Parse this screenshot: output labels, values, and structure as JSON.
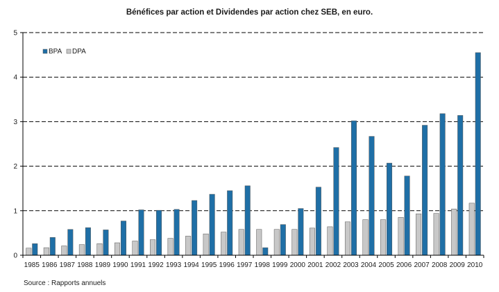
{
  "chart_data": {
    "type": "bar",
    "title": "Bénéfices par action et Dividendes par action chez SEB, en euro.",
    "categories": [
      "1985",
      "1986",
      "1987",
      "1988",
      "1989",
      "1990",
      "1991",
      "1992",
      "1993",
      "1994",
      "1995",
      "1996",
      "1997",
      "1998",
      "1999",
      "2000",
      "2001",
      "2002",
      "2003",
      "2004",
      "2005",
      "2006",
      "2007",
      "2008",
      "2009",
      "2010"
    ],
    "series": [
      {
        "name": "DPA",
        "color": "#c8c8c8",
        "values": [
          0.16,
          0.17,
          0.21,
          0.24,
          0.26,
          0.28,
          0.32,
          0.35,
          0.38,
          0.43,
          0.48,
          0.52,
          0.58,
          0.58,
          0.58,
          0.58,
          0.61,
          0.64,
          0.75,
          0.8,
          0.8,
          0.85,
          0.93,
          0.94,
          1.04,
          1.17
        ]
      },
      {
        "name": "BPA",
        "color": "#1f6fa6",
        "values": [
          0.26,
          0.4,
          0.58,
          0.62,
          0.57,
          0.77,
          1.02,
          1.01,
          1.03,
          1.23,
          1.37,
          1.45,
          1.56,
          0.17,
          0.69,
          1.05,
          1.53,
          2.42,
          3.02,
          2.67,
          2.07,
          1.78,
          2.92,
          3.18,
          3.14,
          4.55
        ]
      }
    ],
    "ylim": [
      0,
      5
    ],
    "yticks": [
      "0",
      "1",
      "2",
      "3",
      "4",
      "5"
    ],
    "grid": "horizontal dashed",
    "legend_position": "top-left",
    "legend": [
      "BPA",
      "DPA"
    ],
    "source": "Source : Rapports annuels"
  }
}
